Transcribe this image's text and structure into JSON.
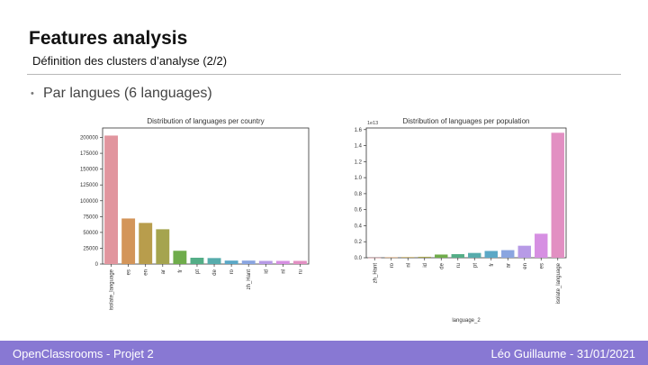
{
  "slide": {
    "title": "Features analysis",
    "subtitle": "Définition des clusters d’analyse (2/2)",
    "bullet": "Par langues (6 languages)"
  },
  "footer": {
    "left": "OpenClassrooms - Projet 2",
    "right": "Léo Guillaume - 31/01/2021",
    "color": "#8878d3"
  },
  "chart_data": [
    {
      "type": "bar",
      "title": "Distribution of languages per country",
      "xlabel": "",
      "ylabel": "",
      "categories": [
        "isolate_language",
        "es",
        "en",
        "ar",
        "fr",
        "pt",
        "de",
        "ro",
        "zh_Hant",
        "id",
        "nl",
        "ru"
      ],
      "values": [
        203000,
        72000,
        65000,
        55000,
        21000,
        10000,
        9500,
        5500,
        5500,
        5000,
        5000,
        5000
      ],
      "colors": [
        "#e1959e",
        "#d3955a",
        "#b89d4c",
        "#a5a44f",
        "#6fac4b",
        "#54ae87",
        "#57acac",
        "#5ba8c6",
        "#8aa5e0",
        "#b79ae6",
        "#d68fe2",
        "#e28fc2"
      ],
      "ylim": [
        0,
        215000
      ],
      "yticks": [
        0,
        25000,
        50000,
        75000,
        100000,
        125000,
        150000,
        175000,
        200000
      ],
      "ytick_labels": [
        "0",
        "25000",
        "50000",
        "75000",
        "100000",
        "125000",
        "150000",
        "175000",
        "200000"
      ],
      "grid": false
    },
    {
      "type": "bar",
      "title": "Distribution of languages per population",
      "xlabel": "language_2",
      "ylabel": "",
      "scale_label": "1e13",
      "categories": [
        "zh_Hant",
        "ro",
        "nl",
        "id",
        "de",
        "ru",
        "pt",
        "fr",
        "ar",
        "en",
        "es",
        "isolate_language"
      ],
      "values": [
        0.002,
        0.005,
        0.008,
        0.012,
        0.04,
        0.045,
        0.06,
        0.085,
        0.095,
        0.15,
        0.3,
        1.56
      ],
      "colors": [
        "#e1959e",
        "#d3955a",
        "#b89d4c",
        "#a5a44f",
        "#6fac4b",
        "#54ae87",
        "#57acac",
        "#5ba8c6",
        "#8aa5e0",
        "#b79ae6",
        "#d68fe2",
        "#e28fc2"
      ],
      "ylim": [
        0,
        1.62
      ],
      "yticks": [
        0,
        0.2,
        0.4,
        0.6,
        0.8,
        1.0,
        1.2,
        1.4,
        1.6
      ],
      "ytick_labels": [
        "0.0",
        "0.2",
        "0.4",
        "0.6",
        "0.8",
        "1.0",
        "1.2",
        "1.4",
        "1.6"
      ],
      "grid": false
    }
  ]
}
